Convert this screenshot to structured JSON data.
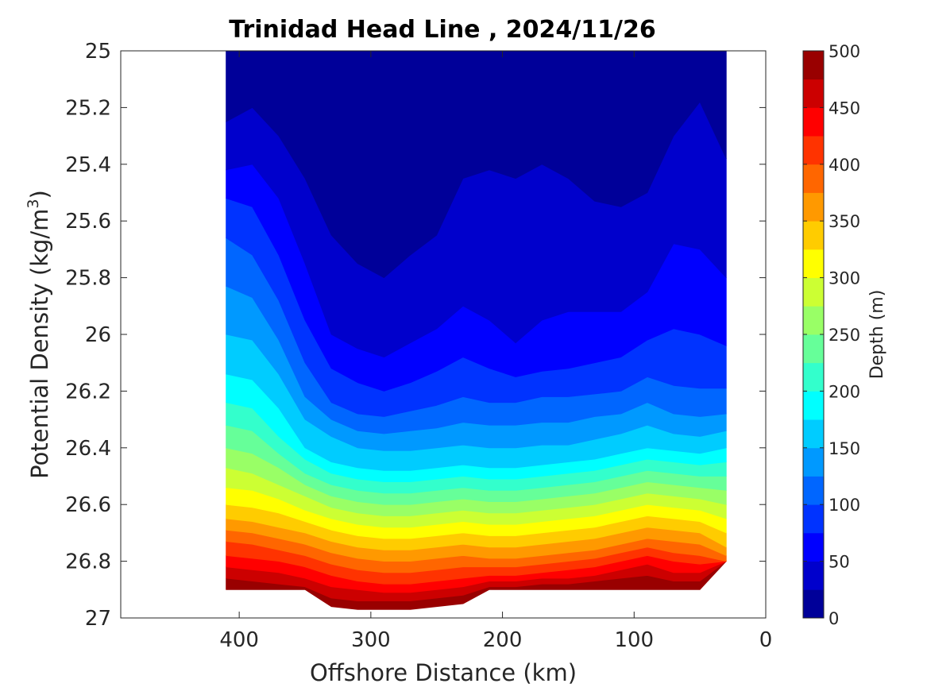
{
  "chart_data": {
    "type": "heatmap",
    "subtype": "filled-contour",
    "title": "Trinidad Head Line , 2024/11/26",
    "xlabel": "Offshore Distance (km)",
    "ylabel_main": "Potential Density (kg/m",
    "ylabel_sup": "3",
    "ylabel_close": ")",
    "xlim": [
      490,
      0
    ],
    "x_reversed": true,
    "ylim": [
      25,
      27
    ],
    "y_reversed": true,
    "x_ticks": [
      400,
      300,
      200,
      100,
      0
    ],
    "y_ticks": [
      25,
      25.2,
      25.4,
      25.6,
      25.8,
      26,
      26.2,
      26.4,
      26.6,
      26.8,
      27
    ],
    "y_tick_labels": [
      "25",
      "25.2",
      "25.4",
      "25.6",
      "25.8",
      "26",
      "26.2",
      "26.4",
      "26.6",
      "26.8",
      "27"
    ],
    "colorbar": {
      "label": "Depth (m)",
      "min": 0,
      "max": 500,
      "step": 25,
      "ticks": [
        0,
        50,
        100,
        150,
        200,
        250,
        300,
        350,
        400,
        450,
        500
      ],
      "colormap": "jet"
    },
    "grid": false,
    "stations": [
      {
        "x": 410,
        "isopycnals": [
          25.25,
          25.42,
          25.52,
          25.66,
          25.83,
          26.0,
          26.14,
          26.24,
          26.32,
          26.4,
          26.47,
          26.54,
          26.6,
          26.65,
          26.69,
          26.73,
          26.78,
          26.82,
          26.86,
          26.9
        ],
        "bottom": 26.9
      },
      {
        "x": 390,
        "isopycnals": [
          25.2,
          25.4,
          25.55,
          25.72,
          25.87,
          26.02,
          26.16,
          26.26,
          26.34,
          26.42,
          26.49,
          26.55,
          26.61,
          26.66,
          26.7,
          26.74,
          26.79,
          26.83,
          26.87,
          26.9
        ],
        "bottom": 26.9
      },
      {
        "x": 370,
        "isopycnals": [
          25.3,
          25.52,
          25.72,
          25.88,
          26.02,
          26.14,
          26.26,
          26.36,
          26.42,
          26.47,
          26.53,
          26.58,
          26.63,
          26.68,
          26.72,
          26.76,
          26.8,
          26.84,
          26.88,
          26.9
        ],
        "bottom": 26.9
      },
      {
        "x": 350,
        "isopycnals": [
          25.45,
          25.75,
          25.95,
          26.1,
          26.22,
          26.3,
          26.4,
          26.44,
          26.49,
          26.53,
          26.57,
          26.62,
          26.66,
          26.7,
          26.74,
          26.78,
          26.82,
          26.86,
          26.89,
          26.92
        ],
        "bottom": 26.9
      },
      {
        "x": 330,
        "isopycnals": [
          25.65,
          26.0,
          26.12,
          26.24,
          26.3,
          26.36,
          26.45,
          26.49,
          26.53,
          26.57,
          26.61,
          26.65,
          26.69,
          26.73,
          26.77,
          26.81,
          26.85,
          26.89,
          26.93,
          26.96
        ],
        "bottom": 27.0
      },
      {
        "x": 310,
        "isopycnals": [
          25.75,
          26.05,
          26.17,
          26.28,
          26.34,
          26.4,
          26.47,
          26.51,
          26.55,
          26.59,
          26.63,
          26.67,
          26.71,
          26.75,
          26.79,
          26.83,
          26.87,
          26.9,
          26.94,
          26.97
        ],
        "bottom": 27.0
      },
      {
        "x": 290,
        "isopycnals": [
          25.8,
          26.08,
          26.2,
          26.29,
          26.35,
          26.41,
          26.48,
          26.52,
          26.56,
          26.6,
          26.64,
          26.68,
          26.72,
          26.76,
          26.8,
          26.84,
          26.88,
          26.91,
          26.94,
          26.97
        ],
        "bottom": 27.0
      },
      {
        "x": 270,
        "isopycnals": [
          25.72,
          26.03,
          26.17,
          26.27,
          26.34,
          26.41,
          26.48,
          26.52,
          26.56,
          26.6,
          26.64,
          26.68,
          26.72,
          26.76,
          26.8,
          26.84,
          26.88,
          26.91,
          26.94,
          26.97
        ],
        "bottom": 27.0
      },
      {
        "x": 250,
        "isopycnals": [
          25.65,
          25.98,
          26.13,
          26.25,
          26.33,
          26.4,
          26.47,
          26.51,
          26.55,
          26.59,
          26.63,
          26.67,
          26.71,
          26.75,
          26.79,
          26.83,
          26.87,
          26.9,
          26.93,
          26.96
        ],
        "bottom": 27.0
      },
      {
        "x": 230,
        "isopycnals": [
          25.45,
          25.9,
          26.08,
          26.22,
          26.31,
          26.39,
          26.46,
          26.5,
          26.54,
          26.58,
          26.62,
          26.66,
          26.7,
          26.74,
          26.78,
          26.82,
          26.86,
          26.89,
          26.92,
          26.95
        ],
        "bottom": 27.0
      },
      {
        "x": 210,
        "isopycnals": [
          25.42,
          25.95,
          26.12,
          26.24,
          26.32,
          26.4,
          26.47,
          26.51,
          26.55,
          26.59,
          26.63,
          26.67,
          26.71,
          26.75,
          26.79,
          26.82,
          26.85,
          26.87,
          26.89,
          26.9
        ],
        "bottom": 26.9
      },
      {
        "x": 190,
        "isopycnals": [
          25.45,
          26.03,
          26.15,
          26.24,
          26.32,
          26.4,
          26.47,
          26.51,
          26.55,
          26.59,
          26.63,
          26.67,
          26.71,
          26.75,
          26.79,
          26.82,
          26.85,
          26.87,
          26.89,
          26.9
        ],
        "bottom": 26.9
      },
      {
        "x": 170,
        "isopycnals": [
          25.4,
          25.95,
          26.13,
          26.22,
          26.31,
          26.39,
          26.46,
          26.5,
          26.54,
          26.58,
          26.62,
          26.66,
          26.7,
          26.74,
          26.78,
          26.81,
          26.84,
          26.86,
          26.88,
          26.9
        ],
        "bottom": 26.9
      },
      {
        "x": 150,
        "isopycnals": [
          25.45,
          25.92,
          26.12,
          26.22,
          26.31,
          26.39,
          26.45,
          26.49,
          26.53,
          26.57,
          26.61,
          26.65,
          26.69,
          26.73,
          26.77,
          26.8,
          26.83,
          26.86,
          26.88,
          26.9
        ],
        "bottom": 26.9
      },
      {
        "x": 130,
        "isopycnals": [
          25.53,
          25.92,
          26.1,
          26.21,
          26.29,
          26.37,
          26.44,
          26.48,
          26.52,
          26.56,
          26.6,
          26.64,
          26.68,
          26.72,
          26.76,
          26.79,
          26.82,
          26.85,
          26.87,
          26.9
        ],
        "bottom": 26.9
      },
      {
        "x": 110,
        "isopycnals": [
          25.55,
          25.92,
          26.08,
          26.2,
          26.28,
          26.35,
          26.42,
          26.46,
          26.5,
          26.54,
          26.58,
          26.62,
          26.66,
          26.7,
          26.74,
          26.77,
          26.8,
          26.83,
          26.86,
          26.9
        ],
        "bottom": 26.9
      },
      {
        "x": 90,
        "isopycnals": [
          25.5,
          25.85,
          26.02,
          26.15,
          26.24,
          26.32,
          26.4,
          26.44,
          26.48,
          26.52,
          26.56,
          26.6,
          26.64,
          26.68,
          26.72,
          26.75,
          26.78,
          26.81,
          26.85,
          26.9
        ],
        "bottom": 26.9
      },
      {
        "x": 70,
        "isopycnals": [
          25.3,
          25.68,
          25.98,
          26.18,
          26.28,
          26.35,
          26.41,
          26.45,
          26.49,
          26.53,
          26.57,
          26.61,
          26.65,
          26.69,
          26.73,
          26.77,
          26.8,
          26.84,
          26.87,
          26.9
        ],
        "bottom": 26.9
      },
      {
        "x": 50,
        "isopycnals": [
          25.18,
          25.7,
          26.0,
          26.19,
          26.29,
          26.36,
          26.42,
          26.46,
          26.5,
          26.54,
          26.58,
          26.62,
          26.66,
          26.7,
          26.74,
          26.78,
          26.81,
          26.84,
          26.87,
          26.9
        ],
        "bottom": 26.9
      },
      {
        "x": 30,
        "isopycnals": [
          25.38,
          25.8,
          26.04,
          26.19,
          26.28,
          26.34,
          26.4,
          26.45,
          26.5,
          26.55,
          26.6,
          26.65,
          26.7,
          26.75,
          26.78,
          26.8,
          26.8,
          26.8,
          26.8,
          26.8
        ],
        "bottom": 26.8
      }
    ]
  }
}
